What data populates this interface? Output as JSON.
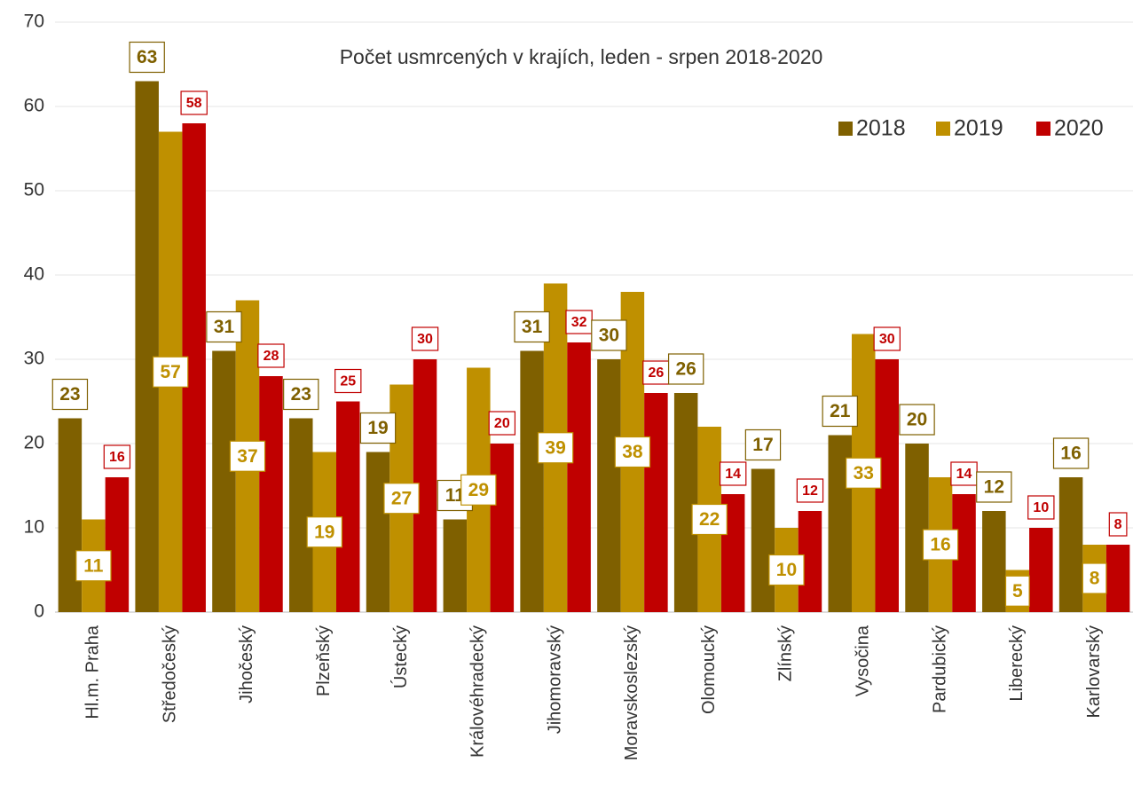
{
  "chart_data": {
    "type": "bar",
    "title": "Počet usmrcených v krajích, leden - srpen 2018-2020",
    "categories": [
      "Hl.m. Praha",
      "Středočeský",
      "Jihočeský",
      "Plzeňský",
      "Ústecký",
      "Královéhradecký",
      "Jihomoravský",
      "Moravskoslezský",
      "Olomoucký",
      "Zlínský",
      "Vysočina",
      "Pardubický",
      "Liberecký",
      "Karlovarský"
    ],
    "series": [
      {
        "name": "2018",
        "color": "#7f6000",
        "values": [
          23,
          63,
          31,
          23,
          19,
          11,
          31,
          30,
          26,
          17,
          21,
          20,
          12,
          16
        ]
      },
      {
        "name": "2019",
        "color": "#bf9000",
        "values": [
          11,
          57,
          37,
          19,
          27,
          29,
          39,
          38,
          22,
          10,
          33,
          16,
          5,
          8
        ]
      },
      {
        "name": "2020",
        "color": "#c00000",
        "values": [
          16,
          58,
          28,
          25,
          30,
          20,
          32,
          26,
          14,
          12,
          30,
          14,
          10,
          8
        ]
      }
    ],
    "ylim": [
      0,
      70
    ],
    "yticks": [
      0,
      10,
      20,
      30,
      40,
      50,
      60,
      70
    ],
    "grid": true,
    "legend": "top-right"
  }
}
